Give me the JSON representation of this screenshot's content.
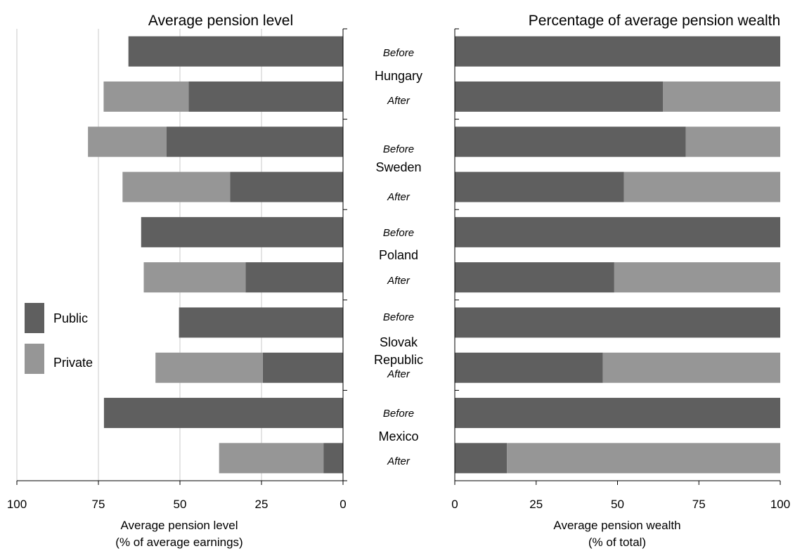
{
  "colors": {
    "public": "#5f5f5f",
    "private": "#969696",
    "grid": "#c8c8c8",
    "axis": "#000000"
  },
  "countries": [
    {
      "name_lines": [
        "Hungary"
      ]
    },
    {
      "name_lines": [
        "Sweden"
      ]
    },
    {
      "name_lines": [
        "Poland"
      ]
    },
    {
      "name_lines": [
        "Slovak",
        "Republic"
      ]
    },
    {
      "name_lines": [
        "Mexico"
      ]
    }
  ],
  "phase_labels": {
    "before": "Before",
    "after": "After"
  },
  "legend": [
    {
      "label": "Public",
      "color_key": "public"
    },
    {
      "label": "Private",
      "color_key": "private"
    }
  ],
  "chart_data": [
    {
      "type": "bar",
      "orientation": "horizontal",
      "stacked": true,
      "axis_direction": "reversed",
      "title": "Average pension level",
      "xlabel_lines": [
        "Average pension level",
        "(% of average earnings)"
      ],
      "xlim": [
        0,
        100
      ],
      "xticks": [
        "100",
        "75",
        "50",
        "25",
        "0"
      ],
      "grid": true,
      "categories": [
        "Hungary Before",
        "Hungary After",
        "Sweden Before",
        "Sweden After",
        "Poland Before",
        "Poland After",
        "Slovak Republic Before",
        "Slovak Republic After",
        "Mexico Before",
        "Mexico After"
      ],
      "series": [
        {
          "name": "Public",
          "values": [
            65.8,
            47.3,
            54.1,
            34.6,
            61.9,
            29.9,
            50.3,
            24.6,
            73.3,
            6.0
          ]
        },
        {
          "name": "Private",
          "values": [
            0,
            26.1,
            24.1,
            33.0,
            0,
            31.2,
            0,
            32.9,
            0,
            32.0
          ]
        }
      ]
    },
    {
      "type": "bar",
      "orientation": "horizontal",
      "stacked": true,
      "title": "Percentage of average pension wealth",
      "xlabel_lines": [
        "Average pension wealth",
        "(% of total)"
      ],
      "xlim": [
        0,
        100
      ],
      "xticks": [
        "0",
        "25",
        "50",
        "75",
        "100"
      ],
      "grid": false,
      "categories": [
        "Hungary Before",
        "Hungary After",
        "Sweden Before",
        "Sweden After",
        "Poland Before",
        "Poland After",
        "Slovak Republic Before",
        "Slovak Republic After",
        "Mexico Before",
        "Mexico After"
      ],
      "series": [
        {
          "name": "Public",
          "values": [
            100,
            64,
            71,
            52,
            100,
            49,
            100,
            45.5,
            100,
            16
          ]
        },
        {
          "name": "Private",
          "values": [
            0,
            36,
            29,
            48,
            0,
            51,
            0,
            54.5,
            0,
            84
          ]
        }
      ]
    }
  ]
}
